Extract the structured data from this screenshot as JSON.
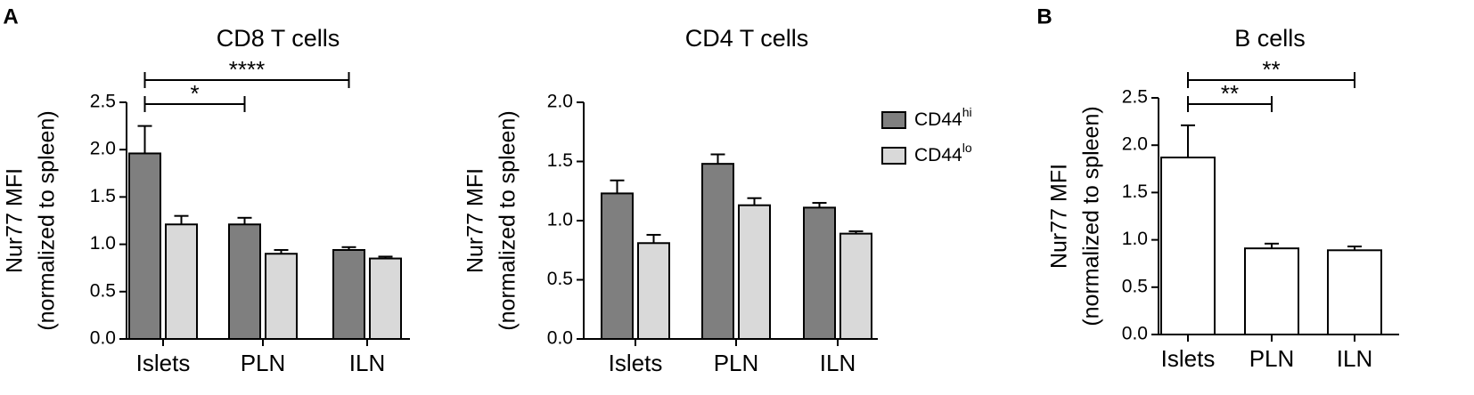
{
  "chart_data": [
    {
      "type": "bar",
      "panel": "A",
      "title": "CD8 T cells",
      "y_label": [
        "Nur77 MFI",
        "(normalized to spleen)"
      ],
      "categories": [
        "Islets",
        "PLN",
        "ILN"
      ],
      "series": [
        {
          "name": "CD44hi",
          "color": "#7f7f7f",
          "values": [
            1.96,
            1.21,
            0.94
          ],
          "errors": [
            0.29,
            0.07,
            0.03
          ]
        },
        {
          "name": "CD44lo",
          "color": "#d9d9d9",
          "values": [
            1.21,
            0.9,
            0.85
          ],
          "errors": [
            0.09,
            0.04,
            0.02
          ]
        }
      ],
      "ylim": [
        0,
        2.5
      ],
      "yticks": [
        {
          "value": 0,
          "label": "0.0"
        },
        0.5,
        {
          "value": 1,
          "label": "1.0"
        },
        1.5,
        {
          "value": 2,
          "label": "2.0"
        },
        2.5
      ],
      "annotations": [
        "*",
        "****"
      ]
    },
    {
      "type": "bar",
      "title": "CD4 T cells",
      "y_label": [
        "Nur77 MFI",
        "(normalized to spleen)"
      ],
      "categories": [
        "Islets",
        "PLN",
        "ILN"
      ],
      "series": [
        {
          "name": "CD44hi",
          "color": "#7f7f7f",
          "values": [
            1.23,
            1.48,
            1.11
          ],
          "errors": [
            0.11,
            0.08,
            0.04
          ]
        },
        {
          "name": "CD44lo",
          "color": "#d9d9d9",
          "values": [
            0.81,
            1.13,
            0.89
          ],
          "errors": [
            0.07,
            0.06,
            0.02
          ]
        }
      ],
      "ylim": [
        0,
        2
      ],
      "yticks": [
        {
          "value": 0,
          "label": "0.0"
        },
        0.5,
        {
          "value": 1,
          "label": "1.0"
        },
        1.5,
        {
          "value": 2,
          "label": "2.0"
        }
      ],
      "legend": true
    },
    {
      "type": "bar",
      "panel": "B",
      "title": "B cells",
      "y_label": [
        "Nur77 MFI",
        "(normalized to spleen)"
      ],
      "categories": [
        "Islets",
        "PLN",
        "ILN"
      ],
      "series": [
        {
          "color": "#ffffff",
          "values": [
            1.87,
            0.91,
            0.89
          ],
          "errors": [
            0.34,
            0.05,
            0.04
          ]
        }
      ],
      "ylim": [
        0,
        2.5
      ],
      "yticks": [
        {
          "value": 0,
          "label": "0.0"
        },
        0.5,
        {
          "value": 1,
          "label": "1.0"
        },
        1.5,
        {
          "value": 2,
          "label": "2.0"
        },
        2.5
      ],
      "annotations": [
        "**",
        "**"
      ]
    }
  ]
}
